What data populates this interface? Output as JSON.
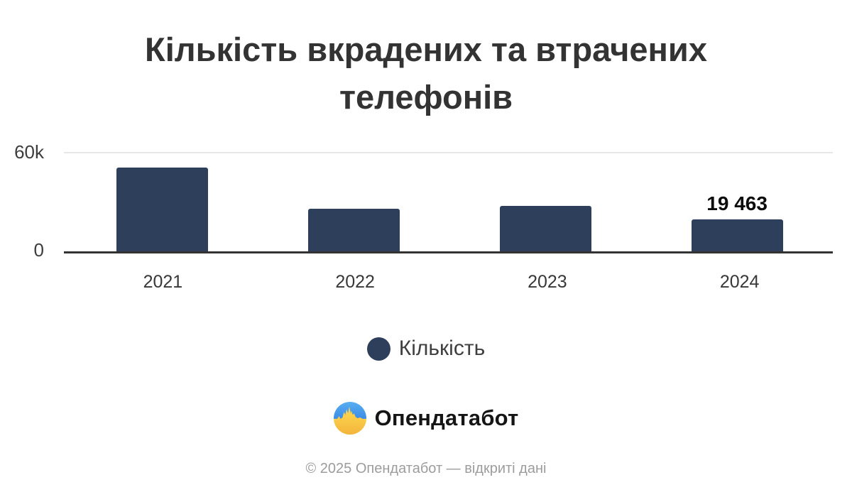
{
  "title": "Кількість вкрадених та втрачених телефонів",
  "chart_data": {
    "type": "bar",
    "title": "Кількість вкрадених та втрачених телефонів",
    "categories": [
      "2021",
      "2022",
      "2023",
      "2024"
    ],
    "series": [
      {
        "name": "Кількість",
        "values": [
          51400,
          26000,
          28000,
          19463
        ],
        "data_labels": [
          "",
          "",
          "",
          "19 463"
        ]
      }
    ],
    "xlabel": "",
    "ylabel": "",
    "ylim": [
      0,
      60000
    ],
    "yticks": [
      {
        "value": 0,
        "label": "0"
      },
      {
        "value": 60000,
        "label": "60k"
      }
    ],
    "grid": "single top gridline at 60k",
    "legend_position": "bottom",
    "bar_color": "#2e3f5c"
  },
  "legend": {
    "items": [
      {
        "label": "Кількість",
        "color": "#2e3f5c"
      }
    ]
  },
  "branding": {
    "logo_text": "Опендатабот",
    "logo_colors": {
      "blue_top": "#59aef1",
      "blue_bottom": "#3c8ce6",
      "yellow_top": "#ffdb52",
      "yellow_bottom": "#f3b53c"
    }
  },
  "footer": {
    "text": "© 2025 Опендатабот — відкриті дані"
  }
}
